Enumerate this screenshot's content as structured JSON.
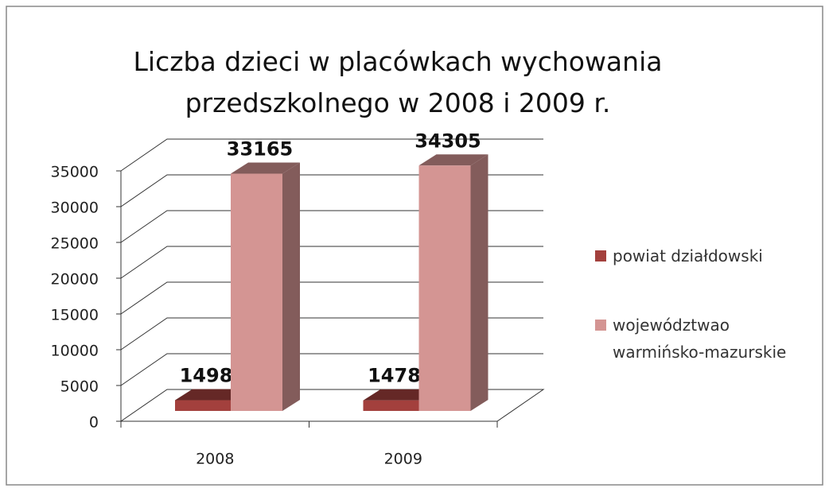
{
  "chart_data": {
    "type": "bar3d",
    "title": "Liczba dzieci w placówkach wychowania przedszkolnego w 2008 i 2009 r.",
    "categories": [
      "2008",
      "2009"
    ],
    "series": [
      {
        "name": "powiat działdowski",
        "color": "#a3403d",
        "values": [
          1498,
          1478
        ]
      },
      {
        "name": "województwao warmińsko-mazurskie",
        "color": "#d49593",
        "values": [
          33165,
          34305
        ]
      }
    ],
    "ylim": [
      0,
      35000
    ],
    "yticks": [
      0,
      5000,
      10000,
      15000,
      20000,
      25000,
      30000,
      35000
    ],
    "grid": true,
    "legend": "right"
  }
}
